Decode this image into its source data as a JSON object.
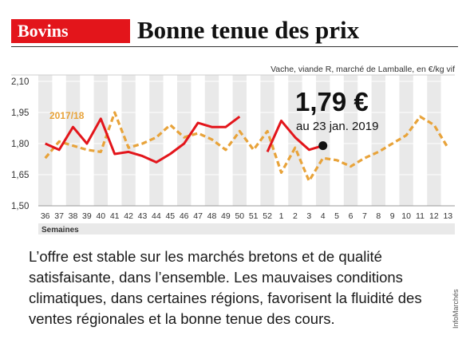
{
  "header": {
    "tag": "Bovins",
    "title": "Bonne tenue des prix"
  },
  "body_text": "L’offre est stable sur les marchés bretons et de qualité satisfaisante, dans l’ensemble. Les mauvaises conditions climatiques, dans certaines régions, favorisent la fluidité des ventes régionales et la bonne tenue des cours.",
  "credit": "InfoMarchés",
  "colors": {
    "tag_bg": "#e3151b",
    "series_current": "#e3151b",
    "series_previous": "#e8a33a",
    "stripe": "#e9e9e9"
  },
  "chart_data": {
    "type": "line",
    "subtitle": "Vache, viande R, marché de Lamballe, en €/kg vif",
    "xlabel": "Semaines",
    "ylabel": "",
    "ylim": [
      1.5,
      2.1
    ],
    "yticks": [
      "2,10",
      "1,95",
      "1,80",
      "1,65",
      "1,50"
    ],
    "ytick_values": [
      2.1,
      1.95,
      1.8,
      1.65,
      1.5
    ],
    "categories": [
      "36",
      "37",
      "38",
      "39",
      "40",
      "41",
      "42",
      "43",
      "44",
      "45",
      "46",
      "47",
      "48",
      "49",
      "50",
      "51",
      "52",
      "1",
      "2",
      "3",
      "4",
      "5",
      "6",
      "7",
      "8",
      "9",
      "10",
      "11",
      "12",
      "13"
    ],
    "series": [
      {
        "name": "",
        "style": "solid",
        "values": [
          1.8,
          1.77,
          1.88,
          1.8,
          1.92,
          1.75,
          1.76,
          1.74,
          1.71,
          1.75,
          1.8,
          1.9,
          1.88,
          1.88,
          1.93,
          null,
          1.76,
          1.91,
          1.83,
          1.77,
          1.79,
          null,
          null,
          null,
          null,
          null,
          null,
          null,
          null,
          null
        ]
      },
      {
        "name": "2017/18",
        "style": "dashed",
        "values": [
          1.73,
          1.81,
          1.79,
          1.77,
          1.76,
          1.95,
          1.78,
          1.8,
          1.83,
          1.89,
          1.83,
          1.85,
          1.82,
          1.77,
          1.86,
          1.77,
          1.86,
          1.66,
          1.78,
          1.62,
          1.73,
          1.72,
          1.69,
          1.73,
          1.76,
          1.8,
          1.84,
          1.93,
          1.89,
          1.78
        ]
      }
    ],
    "annotation": {
      "value_text": "1,79 €",
      "date_text": "au 23 jan. 2019",
      "category": "4",
      "value": 1.79
    }
  }
}
